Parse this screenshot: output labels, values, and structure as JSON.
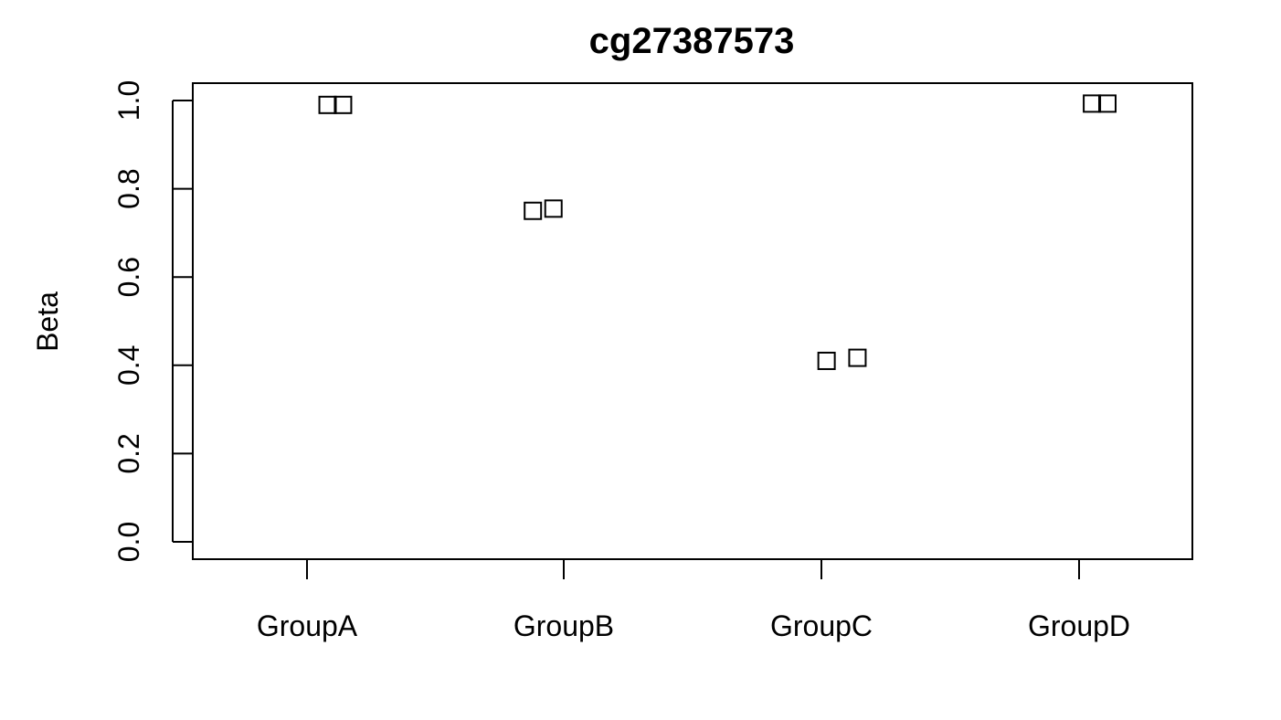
{
  "chart_data": {
    "type": "scatter",
    "title": "cg27387573",
    "xlabel": "",
    "ylabel": "Beta",
    "categories": [
      "GroupA",
      "GroupB",
      "GroupC",
      "GroupD"
    ],
    "ylim": [
      0,
      1
    ],
    "yticks": [
      "0.0",
      "0.2",
      "0.4",
      "0.6",
      "0.8",
      "1.0"
    ],
    "grid": false,
    "marker": "open-square",
    "points": [
      {
        "category": "GroupA",
        "jitter": 0.08,
        "y": 0.99
      },
      {
        "category": "GroupA",
        "jitter": 0.14,
        "y": 0.99
      },
      {
        "category": "GroupB",
        "jitter": -0.12,
        "y": 0.75
      },
      {
        "category": "GroupB",
        "jitter": -0.04,
        "y": 0.755
      },
      {
        "category": "GroupC",
        "jitter": 0.02,
        "y": 0.41
      },
      {
        "category": "GroupC",
        "jitter": 0.14,
        "y": 0.417
      },
      {
        "category": "GroupD",
        "jitter": 0.05,
        "y": 0.993
      },
      {
        "category": "GroupD",
        "jitter": 0.11,
        "y": 0.993
      }
    ]
  }
}
